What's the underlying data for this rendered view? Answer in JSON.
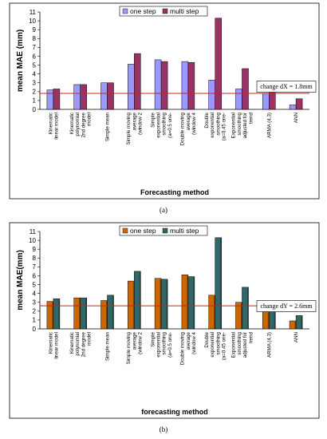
{
  "chart_data": [
    {
      "type": "bar",
      "panel_label": "(a)",
      "categories": [
        "Kinematic linear model",
        "Kinematic polynomial 2nd degree model",
        "Simple mean",
        "Simple moving average (window 2",
        "Simple exponential smoothing (a=0.5 one-",
        "Double moving average (window 4",
        "Double exponential smoothing (a=0.45 one-",
        "Exponential smoothing adjusted for trend",
        "ARMA (4,3)",
        "ANN"
      ],
      "series": [
        {
          "name": "one step",
          "values": [
            2.2,
            2.8,
            3.0,
            5.1,
            5.6,
            5.4,
            3.3,
            2.3,
            1.8,
            0.5
          ]
        },
        {
          "name": "multi step",
          "values": [
            2.3,
            2.8,
            3.0,
            6.3,
            5.4,
            5.3,
            10.3,
            4.6,
            2.1,
            1.2
          ]
        }
      ],
      "colors": {
        "one step": "#9999ff",
        "multi step": "#993366"
      },
      "xlabel": "Forecasting method",
      "ylabel": "mean MAE (mm)",
      "ylim": [
        0,
        11
      ],
      "yticks": [
        0,
        1,
        2,
        3,
        4,
        5,
        6,
        7,
        8,
        9,
        10,
        11
      ],
      "reference_line": {
        "value": 1.8,
        "label": "change dX = 1.8mm"
      },
      "legend": "top"
    },
    {
      "type": "bar",
      "panel_label": "(b)",
      "categories": [
        "Kinematic linear model",
        "Kinematic polynomial 2nd degree model",
        "Simple mean",
        "Simple moving average (window 2",
        "Simple exponential smoothing (a=0.5 one-",
        "Double moving average (window 4",
        "Double exponential smoothing (a=0.45 one-",
        "Exponential smoothing adjusted for trend",
        "ARMA (4,3)",
        "ANN"
      ],
      "series": [
        {
          "name": "one step",
          "values": [
            3.1,
            3.5,
            3.2,
            5.4,
            5.7,
            6.1,
            3.8,
            3.0,
            2.8,
            0.9
          ]
        },
        {
          "name": "multi step",
          "values": [
            3.4,
            3.5,
            3.8,
            6.5,
            5.6,
            5.9,
            10.3,
            4.7,
            2.5,
            1.5
          ]
        }
      ],
      "colors": {
        "one step": "#cc6600",
        "multi step": "#336666"
      },
      "xlabel": "forecasting method",
      "ylabel": "mean MAE(mm)",
      "ylim": [
        0,
        11
      ],
      "yticks": [
        0,
        1,
        2,
        3,
        4,
        5,
        6,
        7,
        8,
        9,
        10,
        11
      ],
      "reference_line": {
        "value": 2.6,
        "label": "change dY = 2.6mm"
      },
      "legend": "top"
    }
  ]
}
